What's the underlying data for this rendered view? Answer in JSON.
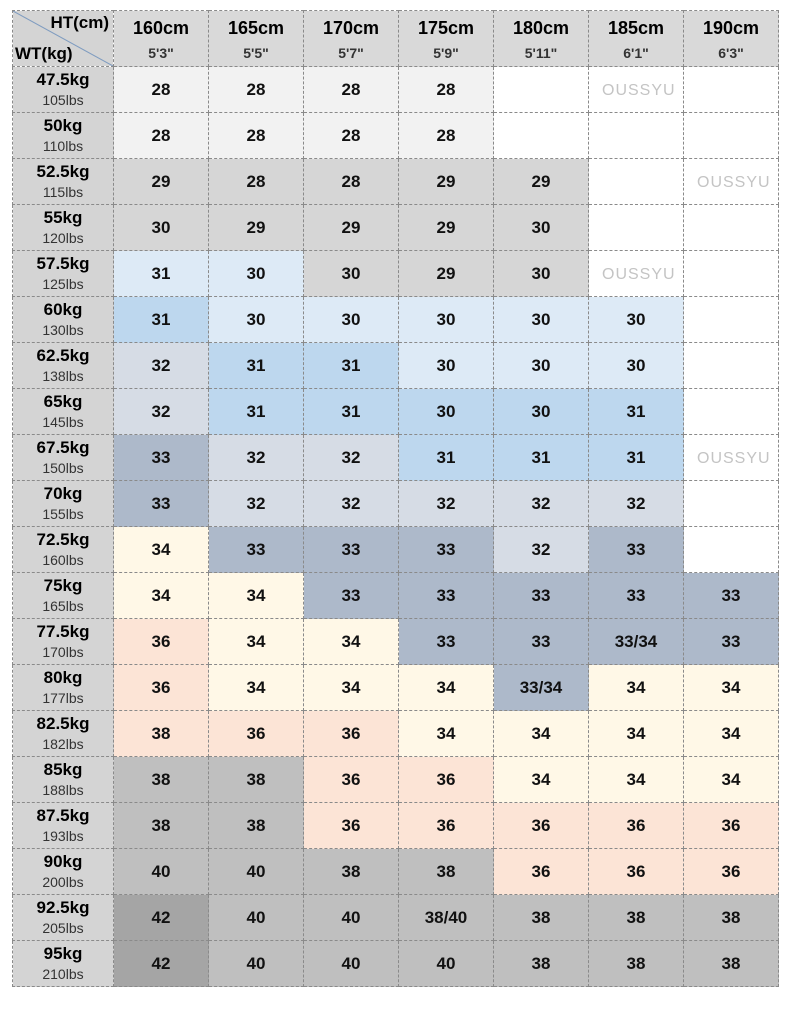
{
  "corner": {
    "height_label": "HT(cm)",
    "weight_label": "WT(kg)"
  },
  "heights": [
    {
      "cm": "160cm",
      "ft": "5'3\""
    },
    {
      "cm": "165cm",
      "ft": "5'5\""
    },
    {
      "cm": "170cm",
      "ft": "5'7\""
    },
    {
      "cm": "175cm",
      "ft": "5'9\""
    },
    {
      "cm": "180cm",
      "ft": "5'11\""
    },
    {
      "cm": "185cm",
      "ft": "6'1\""
    },
    {
      "cm": "190cm",
      "ft": "6'3\""
    }
  ],
  "palette": {
    "W": "#ffffff",
    "L": "#f2f2f2",
    "G": "#d6d6d6",
    "B1": "#ddeaf6",
    "B2": "#bdd7ee",
    "S": "#d6dce5",
    "S2": "#adb9ca",
    "Y": "#fff8e7",
    "P": "#fce4d6",
    "G2": "#bfbfbf",
    "G3": "#a5a5a5"
  },
  "rows": [
    {
      "kg": "47.5kg",
      "lbs": "105lbs",
      "sizes": [
        "28",
        "28",
        "28",
        "28",
        "",
        "",
        ""
      ],
      "colors": [
        "L",
        "L",
        "L",
        "L",
        "W",
        "W",
        "W"
      ]
    },
    {
      "kg": "50kg",
      "lbs": "110lbs",
      "sizes": [
        "28",
        "28",
        "28",
        "28",
        "",
        "",
        ""
      ],
      "colors": [
        "L",
        "L",
        "L",
        "L",
        "W",
        "W",
        "W"
      ]
    },
    {
      "kg": "52.5kg",
      "lbs": "115lbs",
      "sizes": [
        "29",
        "28",
        "28",
        "29",
        "29",
        "",
        ""
      ],
      "colors": [
        "G",
        "G",
        "G",
        "G",
        "G",
        "W",
        "W"
      ]
    },
    {
      "kg": "55kg",
      "lbs": "120lbs",
      "sizes": [
        "30",
        "29",
        "29",
        "29",
        "30",
        "",
        ""
      ],
      "colors": [
        "G",
        "G",
        "G",
        "G",
        "G",
        "W",
        "W"
      ]
    },
    {
      "kg": "57.5kg",
      "lbs": "125lbs",
      "sizes": [
        "31",
        "30",
        "30",
        "29",
        "30",
        "",
        ""
      ],
      "colors": [
        "B1",
        "B1",
        "G",
        "G",
        "G",
        "W",
        "W"
      ]
    },
    {
      "kg": "60kg",
      "lbs": "130lbs",
      "sizes": [
        "31",
        "30",
        "30",
        "30",
        "30",
        "30",
        ""
      ],
      "colors": [
        "B2",
        "B1",
        "B1",
        "B1",
        "B1",
        "B1",
        "W"
      ]
    },
    {
      "kg": "62.5kg",
      "lbs": "138lbs",
      "sizes": [
        "32",
        "31",
        "31",
        "30",
        "30",
        "30",
        ""
      ],
      "colors": [
        "S",
        "B2",
        "B2",
        "B1",
        "B1",
        "B1",
        "W"
      ]
    },
    {
      "kg": "65kg",
      "lbs": "145lbs",
      "sizes": [
        "32",
        "31",
        "31",
        "30",
        "30",
        "31",
        ""
      ],
      "colors": [
        "S",
        "B2",
        "B2",
        "B2",
        "B2",
        "B2",
        "W"
      ]
    },
    {
      "kg": "67.5kg",
      "lbs": "150lbs",
      "sizes": [
        "33",
        "32",
        "32",
        "31",
        "31",
        "31",
        ""
      ],
      "colors": [
        "S2",
        "S",
        "S",
        "B2",
        "B2",
        "B2",
        "W"
      ]
    },
    {
      "kg": "70kg",
      "lbs": "155lbs",
      "sizes": [
        "33",
        "32",
        "32",
        "32",
        "32",
        "32",
        ""
      ],
      "colors": [
        "S2",
        "S",
        "S",
        "S",
        "S",
        "S",
        "W"
      ]
    },
    {
      "kg": "72.5kg",
      "lbs": "160lbs",
      "sizes": [
        "34",
        "33",
        "33",
        "33",
        "32",
        "33",
        ""
      ],
      "colors": [
        "Y",
        "S2",
        "S2",
        "S2",
        "S",
        "S2",
        "W"
      ]
    },
    {
      "kg": "75kg",
      "lbs": "165lbs",
      "sizes": [
        "34",
        "34",
        "33",
        "33",
        "33",
        "33",
        "33"
      ],
      "colors": [
        "Y",
        "Y",
        "S2",
        "S2",
        "S2",
        "S2",
        "S2"
      ]
    },
    {
      "kg": "77.5kg",
      "lbs": "170lbs",
      "sizes": [
        "36",
        "34",
        "34",
        "33",
        "33",
        "33/34",
        "33"
      ],
      "colors": [
        "P",
        "Y",
        "Y",
        "S2",
        "S2",
        "S2",
        "S2"
      ]
    },
    {
      "kg": "80kg",
      "lbs": "177lbs",
      "sizes": [
        "36",
        "34",
        "34",
        "34",
        "33/34",
        "34",
        "34"
      ],
      "colors": [
        "P",
        "Y",
        "Y",
        "Y",
        "S2",
        "Y",
        "Y"
      ]
    },
    {
      "kg": "82.5kg",
      "lbs": "182lbs",
      "sizes": [
        "38",
        "36",
        "36",
        "34",
        "34",
        "34",
        "34"
      ],
      "colors": [
        "P",
        "P",
        "P",
        "Y",
        "Y",
        "Y",
        "Y"
      ]
    },
    {
      "kg": "85kg",
      "lbs": "188lbs",
      "sizes": [
        "38",
        "38",
        "36",
        "36",
        "34",
        "34",
        "34"
      ],
      "colors": [
        "G2",
        "G2",
        "P",
        "P",
        "Y",
        "Y",
        "Y"
      ]
    },
    {
      "kg": "87.5kg",
      "lbs": "193lbs",
      "sizes": [
        "38",
        "38",
        "36",
        "36",
        "36",
        "36",
        "36"
      ],
      "colors": [
        "G2",
        "G2",
        "P",
        "P",
        "P",
        "P",
        "P"
      ]
    },
    {
      "kg": "90kg",
      "lbs": "200lbs",
      "sizes": [
        "40",
        "40",
        "38",
        "38",
        "36",
        "36",
        "36"
      ],
      "colors": [
        "G2",
        "G2",
        "G2",
        "G2",
        "P",
        "P",
        "P"
      ]
    },
    {
      "kg": "92.5kg",
      "lbs": "205lbs",
      "sizes": [
        "42",
        "40",
        "40",
        "38/40",
        "38",
        "38",
        "38"
      ],
      "colors": [
        "G3",
        "G2",
        "G2",
        "G2",
        "G2",
        "G2",
        "G2"
      ]
    },
    {
      "kg": "95kg",
      "lbs": "210lbs",
      "sizes": [
        "42",
        "40",
        "40",
        "40",
        "38",
        "38",
        "38"
      ],
      "colors": [
        "G3",
        "G2",
        "G2",
        "G2",
        "G2",
        "G2",
        "G2"
      ]
    }
  ],
  "watermark": "OUSSYU"
}
